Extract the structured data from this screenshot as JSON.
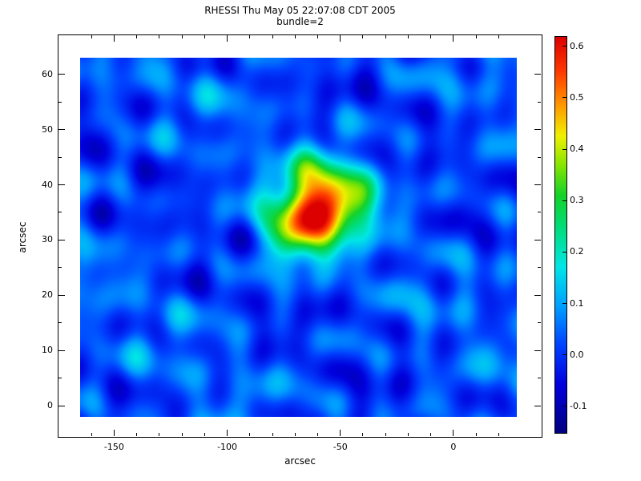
{
  "title_line1": "RHESSI Thu May 05 22:07:08 CDT 2005",
  "title_line2": "bundle=2",
  "chart_data": {
    "type": "heatmap",
    "title": "RHESSI Thu May 05 22:07:08 CDT 2005",
    "subtitle": "bundle=2",
    "xlabel": "arcsec",
    "ylabel": "arcsec",
    "x_range": [
      -165,
      28
    ],
    "y_range": [
      -2,
      63
    ],
    "xticks": [
      -150,
      -100,
      -50,
      0
    ],
    "xtick_labels": [
      "-150",
      "-100",
      "-50",
      "0"
    ],
    "x_minor_step": 10,
    "yticks": [
      0,
      10,
      20,
      30,
      40,
      50,
      60
    ],
    "ytick_labels": [
      "0",
      "10",
      "20",
      "30",
      "40",
      "50",
      "60"
    ],
    "y_minor_step": 5,
    "grid": false,
    "colorbar": {
      "position": "right",
      "vmin": -0.15,
      "vmax": 0.62,
      "ticks": [
        -0.1,
        0.0,
        0.1,
        0.2,
        0.3,
        0.4,
        0.5,
        0.6
      ],
      "tick_labels": [
        "-0.1",
        "0.0",
        "0.1",
        "0.2",
        "0.3",
        "0.4",
        "0.5",
        "0.6"
      ]
    },
    "colormap": [
      {
        "t": 0.0,
        "color": "#000080"
      },
      {
        "t": 0.12,
        "color": "#0000DC"
      },
      {
        "t": 0.22,
        "color": "#0040FF"
      },
      {
        "t": 0.32,
        "color": "#00A0FF"
      },
      {
        "t": 0.42,
        "color": "#00E6E6"
      },
      {
        "t": 0.52,
        "color": "#00DC78"
      },
      {
        "t": 0.6,
        "color": "#14D228"
      },
      {
        "t": 0.68,
        "color": "#8CE600"
      },
      {
        "t": 0.75,
        "color": "#F0F000"
      },
      {
        "t": 0.83,
        "color": "#FF9600"
      },
      {
        "t": 0.91,
        "color": "#FF3C00"
      },
      {
        "t": 1.0,
        "color": "#DC0000"
      }
    ],
    "field_model": {
      "description": "Back-projection style map: smooth blue ripple background with one bright compact source near (-60, 35.5) arcsec peaking at ~0.63",
      "background_level": 0.025,
      "blobs": [
        {
          "x": -60.5,
          "y": 35.5,
          "sigma_x": 13.0,
          "sigma_y": 5.0,
          "amplitude": 0.62,
          "rotation": 0.12
        },
        {
          "x": -39.0,
          "y": 37.5,
          "sigma_x": 8.0,
          "sigma_y": 3.2,
          "amplitude": 0.09,
          "rotation": 0.3
        },
        {
          "x": -64.0,
          "y": 43.0,
          "sigma_x": 6.0,
          "sigma_y": 2.6,
          "amplitude": 0.07,
          "rotation": 0.0
        },
        {
          "x": -76.0,
          "y": 29.5,
          "sigma_x": 6.5,
          "sigma_y": 3.0,
          "amplitude": 0.06,
          "rotation": -0.3
        }
      ],
      "ripples": [
        [
          0.03,
          0.05,
          0.62,
          1.8
        ],
        [
          0.026,
          0.12,
          0.45,
          0.4
        ],
        [
          0.024,
          0.3,
          0.08,
          3.1
        ],
        [
          0.019,
          0.16,
          -0.52,
          2.4
        ],
        [
          0.017,
          -0.08,
          0.33,
          5.0
        ],
        [
          0.015,
          0.24,
          0.2,
          1.1
        ],
        [
          0.024,
          0.045,
          0.13,
          4.2
        ],
        [
          0.013,
          0.4,
          -0.12,
          0.7
        ]
      ]
    }
  },
  "layout_values": {
    "note": "values shown on screen only: title, subtitle, axis tick labels, colorbar tick labels, axis titles"
  }
}
